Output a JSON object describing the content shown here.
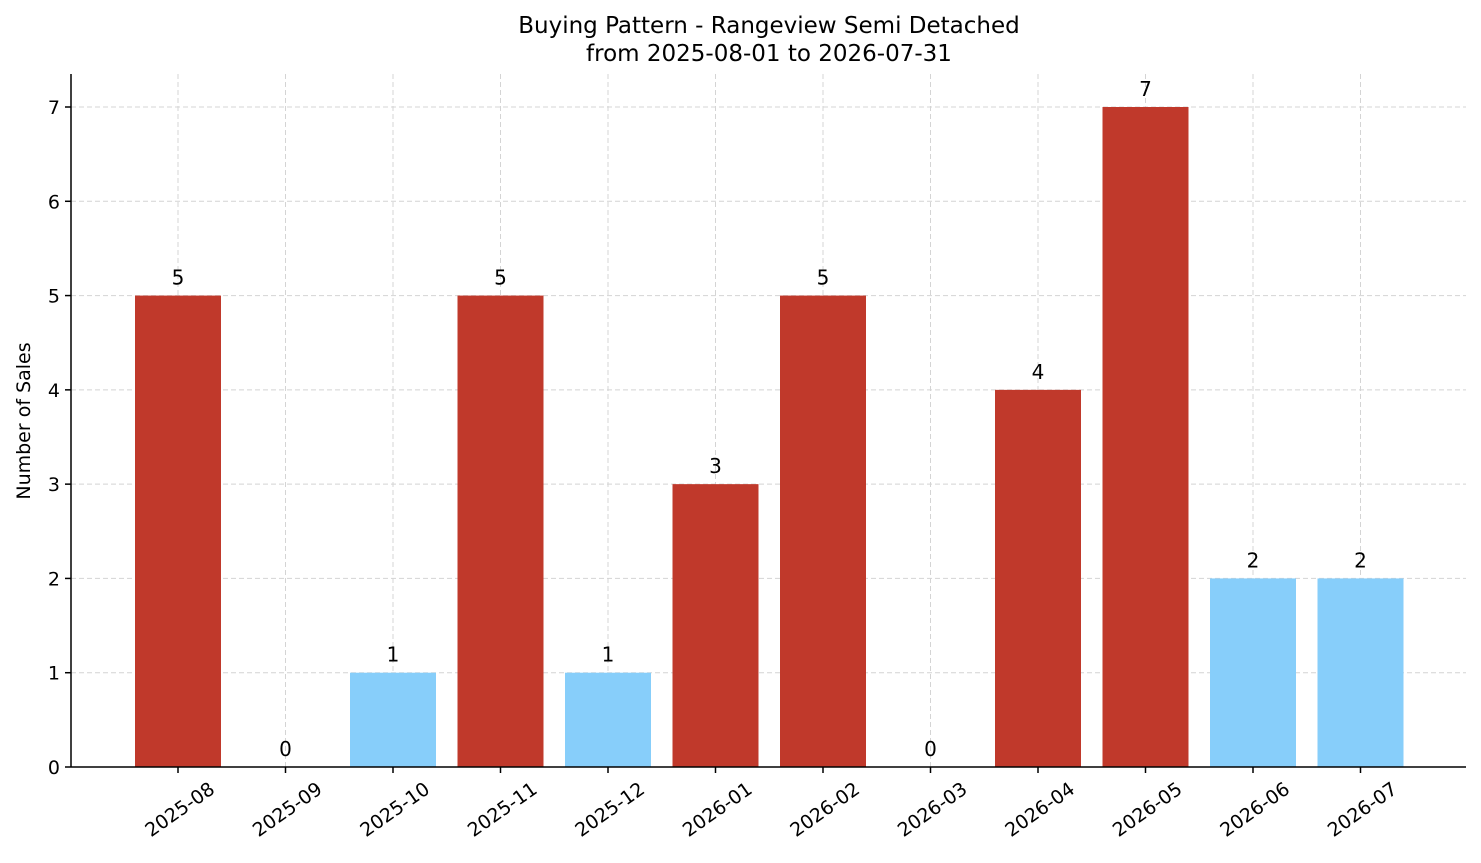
{
  "chart_data": {
    "type": "bar",
    "title": "Buying Pattern - Rangeview Semi Detached",
    "subtitle": "from 2025-08-01 to 2026-07-31",
    "xlabel": "",
    "ylabel": "Number of Sales",
    "ylim": [
      0,
      7.35
    ],
    "yticks": [
      0,
      1,
      2,
      3,
      4,
      5,
      6,
      7
    ],
    "grid": true,
    "categories": [
      "2025-08",
      "2025-09",
      "2025-10",
      "2025-11",
      "2025-12",
      "2026-01",
      "2026-02",
      "2026-03",
      "2026-04",
      "2026-05",
      "2026-06",
      "2026-07"
    ],
    "values": [
      5,
      0,
      1,
      5,
      1,
      3,
      5,
      0,
      4,
      7,
      2,
      2
    ],
    "bar_colors": [
      "#c0392b",
      "#c0392b",
      "#87cefa",
      "#c0392b",
      "#87cefa",
      "#c0392b",
      "#c0392b",
      "#c0392b",
      "#c0392b",
      "#c0392b",
      "#87cefa",
      "#87cefa"
    ]
  }
}
